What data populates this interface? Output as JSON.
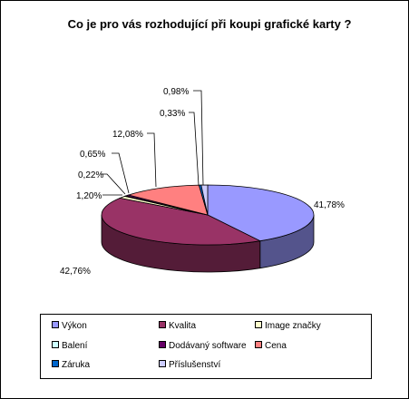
{
  "chart_data": {
    "type": "pie",
    "title": "Co je pro vás rozhodující při koupi grafické karty ?",
    "series": [
      {
        "name": "Výkon",
        "value": 41.78,
        "label": "41,78%",
        "color": "#9999FF"
      },
      {
        "name": "Kvalita",
        "value": 42.76,
        "label": "42,76%",
        "color": "#993366"
      },
      {
        "name": "Image značky",
        "value": 1.2,
        "label": "1,20%",
        "color": "#FFFFCC"
      },
      {
        "name": "Balení",
        "value": 0.22,
        "label": "0,22%",
        "color": "#CCFFFF"
      },
      {
        "name": "Dodávaný software",
        "value": 0.65,
        "label": "0,65%",
        "color": "#660066"
      },
      {
        "name": "Cena",
        "value": 12.08,
        "label": "12,08%",
        "color": "#FF8080"
      },
      {
        "name": "Záruka",
        "value": 0.33,
        "label": "0,33%",
        "color": "#0066CC"
      },
      {
        "name": "Příslušenství",
        "value": 0.98,
        "label": "0,98%",
        "color": "#CCCCFF"
      }
    ],
    "legend_position": "bottom"
  }
}
